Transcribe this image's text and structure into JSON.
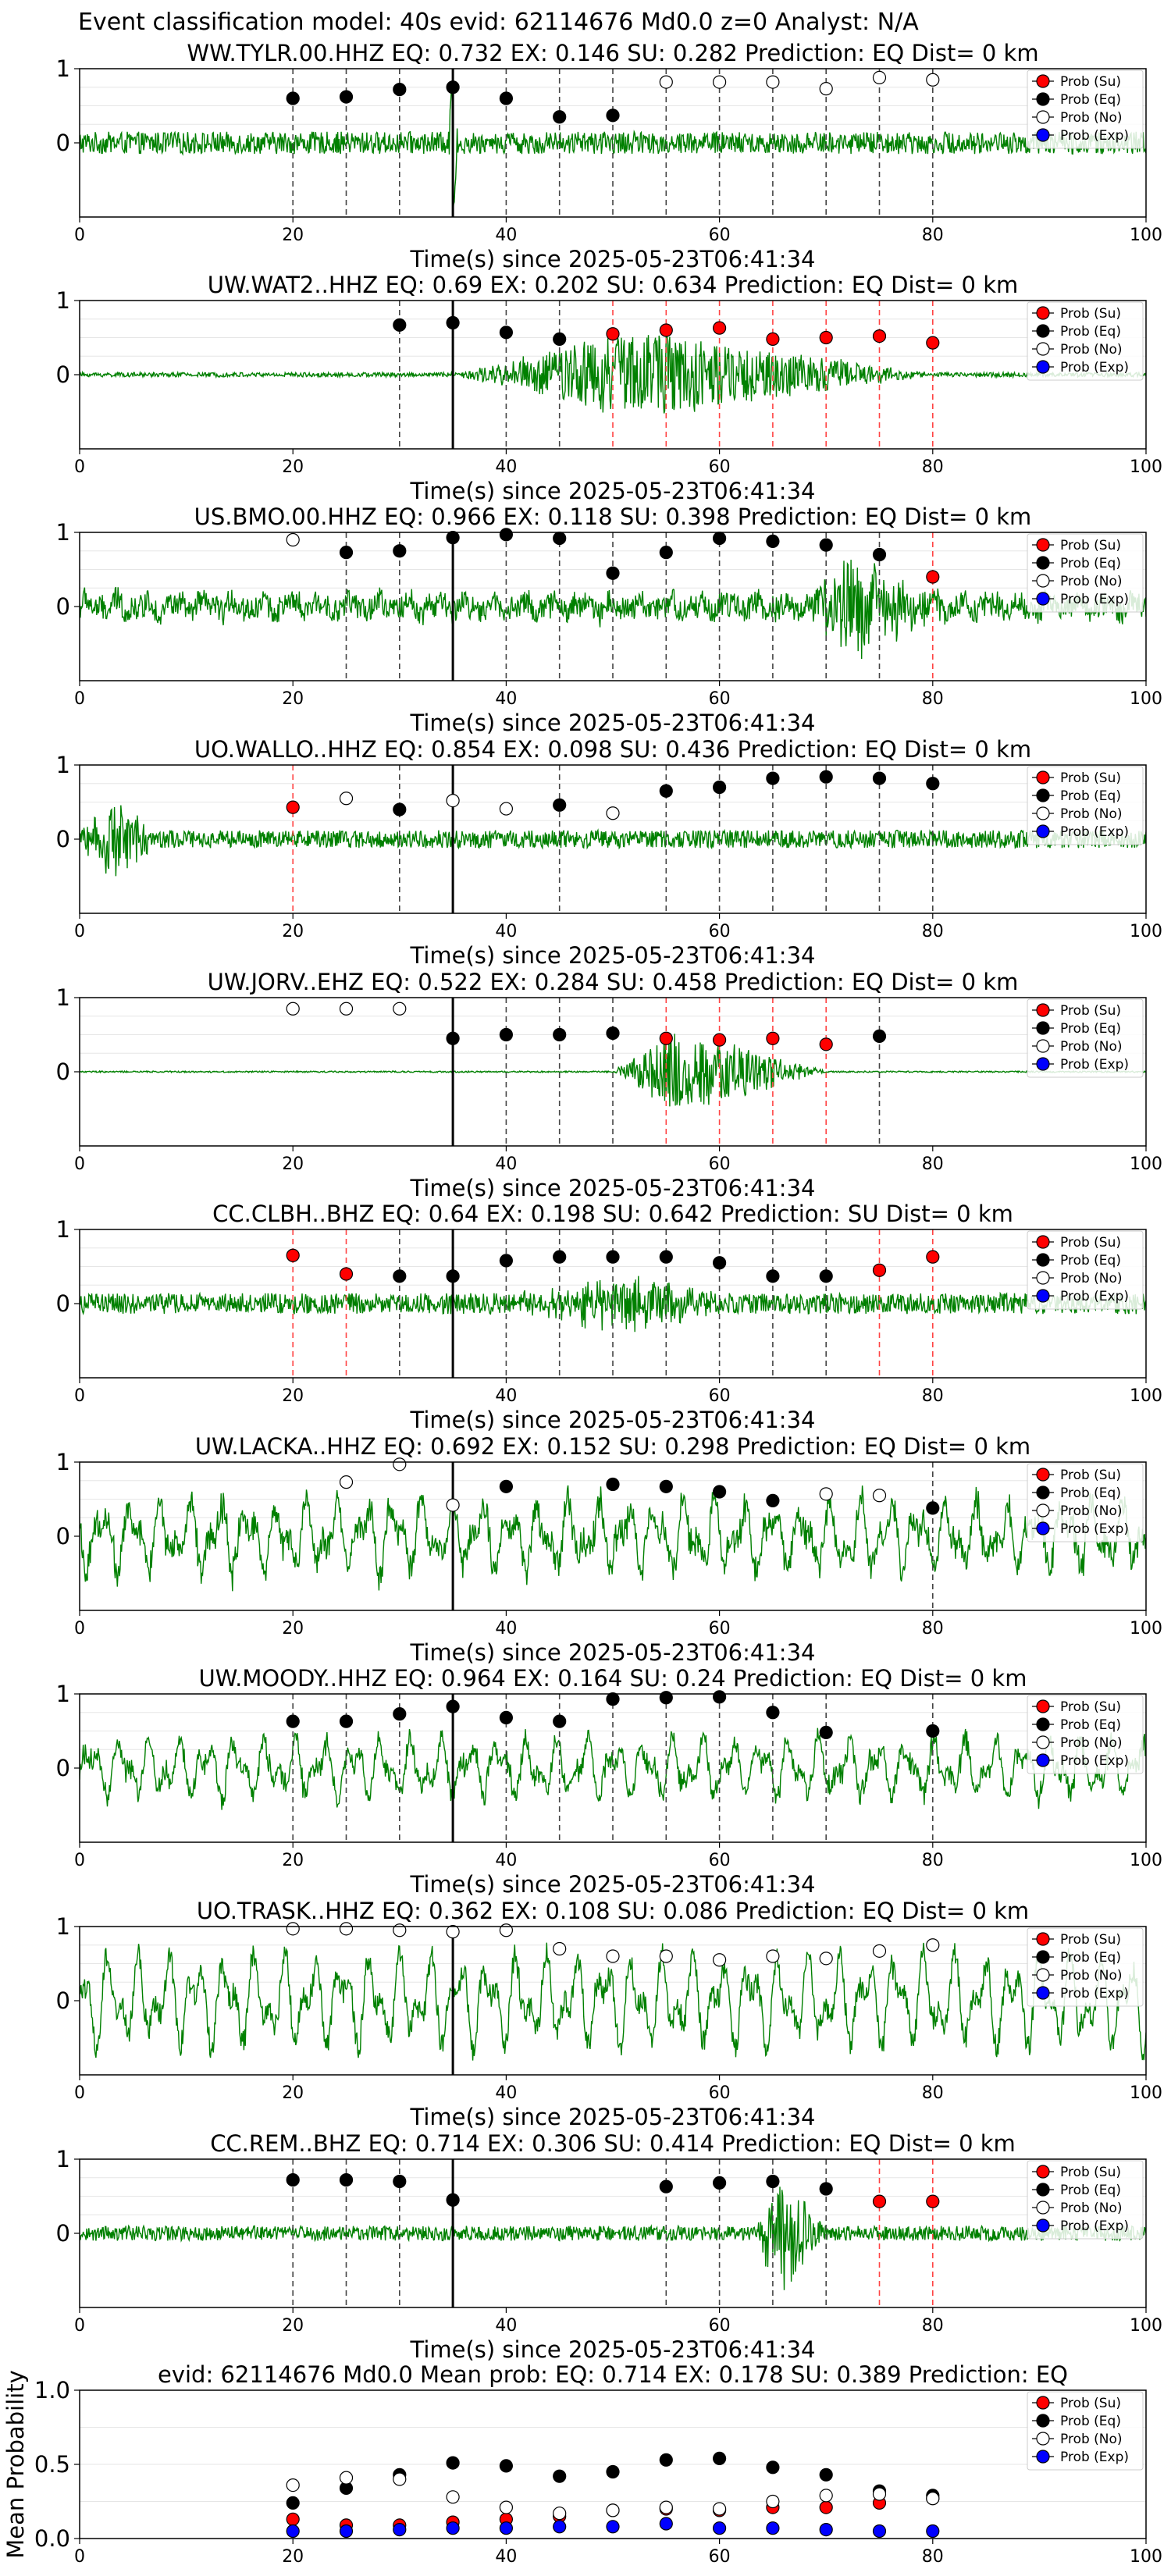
{
  "suptitle": "Event classification model: 40s evid: 62114676 Md0.0 z=0 Analyst: N/A",
  "colors": {
    "waveform": "#008000",
    "su": "#ff0000",
    "eq": "#000000",
    "no": "#ffffff",
    "exp": "#0000ff",
    "marker_black_line": "#444444",
    "marker_red_line": "#ff4444"
  },
  "legend_labels": [
    "Prob (Su)",
    "Prob (Eq)",
    "Prob (No)",
    "Prob (Exp)"
  ],
  "chart_data": [
    {
      "type": "scatter",
      "title": "WW.TYLR.00.HHZ   EQ: 0.732  EX: 0.146  SU: 0.282   Prediction: EQ    Dist= 0 km",
      "xlabel": "Time(s) since 2025-05-23T06:41:34",
      "xlim": [
        0,
        100
      ],
      "ylim": [
        -1,
        1
      ],
      "xticks": [
        0,
        20,
        40,
        60,
        80,
        100
      ],
      "yticks": [
        0,
        1
      ],
      "amplitude": 0.15,
      "spike_at": 35,
      "onset_line": 35,
      "windows": [
        20,
        25,
        30,
        35,
        40,
        45,
        50,
        55,
        60,
        65,
        70,
        75,
        80
      ],
      "points": [
        {
          "x": 20,
          "p": 0.6,
          "cls": "eq"
        },
        {
          "x": 25,
          "p": 0.62,
          "cls": "eq"
        },
        {
          "x": 30,
          "p": 0.72,
          "cls": "eq"
        },
        {
          "x": 35,
          "p": 0.75,
          "cls": "eq"
        },
        {
          "x": 40,
          "p": 0.6,
          "cls": "eq"
        },
        {
          "x": 45,
          "p": 0.35,
          "cls": "eq"
        },
        {
          "x": 50,
          "p": 0.37,
          "cls": "eq"
        },
        {
          "x": 55,
          "p": 0.82,
          "cls": "no"
        },
        {
          "x": 60,
          "p": 0.82,
          "cls": "no"
        },
        {
          "x": 65,
          "p": 0.82,
          "cls": "no"
        },
        {
          "x": 70,
          "p": 0.73,
          "cls": "no"
        },
        {
          "x": 75,
          "p": 0.88,
          "cls": "no"
        },
        {
          "x": 80,
          "p": 0.85,
          "cls": "no"
        }
      ]
    },
    {
      "type": "scatter",
      "title": "UW.WAT2..HHZ   EQ: 0.69  EX: 0.202  SU: 0.634   Prediction: EQ    Dist= 0 km",
      "xlabel": "Time(s) since 2025-05-23T06:41:34",
      "xlim": [
        0,
        100
      ],
      "ylim": [
        -1,
        1
      ],
      "xticks": [
        0,
        20,
        40,
        60,
        80,
        100
      ],
      "yticks": [
        0,
        1
      ],
      "amplitude": 0.03,
      "burst": [
        35,
        80,
        0.6,
        52
      ],
      "onset_line": 35,
      "windows": [
        30,
        35,
        40,
        45,
        50,
        55,
        60,
        65,
        70,
        75,
        80
      ],
      "points": [
        {
          "x": 30,
          "p": 0.67,
          "cls": "eq"
        },
        {
          "x": 35,
          "p": 0.7,
          "cls": "eq"
        },
        {
          "x": 40,
          "p": 0.57,
          "cls": "eq"
        },
        {
          "x": 45,
          "p": 0.48,
          "cls": "eq"
        },
        {
          "x": 50,
          "p": 0.55,
          "cls": "su"
        },
        {
          "x": 55,
          "p": 0.6,
          "cls": "su"
        },
        {
          "x": 60,
          "p": 0.63,
          "cls": "su"
        },
        {
          "x": 65,
          "p": 0.48,
          "cls": "su"
        },
        {
          "x": 70,
          "p": 0.5,
          "cls": "su"
        },
        {
          "x": 75,
          "p": 0.52,
          "cls": "su"
        },
        {
          "x": 80,
          "p": 0.43,
          "cls": "su"
        }
      ]
    },
    {
      "type": "scatter",
      "title": "US.BMO.00.HHZ   EQ: 0.966  EX: 0.118  SU: 0.398   Prediction: EQ    Dist= 0 km",
      "xlabel": "Time(s) since 2025-05-23T06:41:34",
      "xlim": [
        0,
        100
      ],
      "ylim": [
        -1,
        1
      ],
      "xticks": [
        0,
        20,
        40,
        60,
        80,
        100
      ],
      "yticks": [
        0,
        1
      ],
      "amplitude": 0.25,
      "lowfreq": 0.35,
      "burst": [
        68,
        82,
        0.6,
        72
      ],
      "onset_line": 35,
      "windows": [
        25,
        30,
        35,
        40,
        45,
        50,
        55,
        60,
        65,
        70,
        75,
        80
      ],
      "points": [
        {
          "x": 20,
          "p": 0.9,
          "cls": "no"
        },
        {
          "x": 25,
          "p": 0.73,
          "cls": "eq"
        },
        {
          "x": 30,
          "p": 0.75,
          "cls": "eq"
        },
        {
          "x": 35,
          "p": 0.93,
          "cls": "eq"
        },
        {
          "x": 40,
          "p": 0.97,
          "cls": "eq"
        },
        {
          "x": 45,
          "p": 0.92,
          "cls": "eq"
        },
        {
          "x": 50,
          "p": 0.45,
          "cls": "eq"
        },
        {
          "x": 55,
          "p": 0.73,
          "cls": "eq"
        },
        {
          "x": 60,
          "p": 0.92,
          "cls": "eq"
        },
        {
          "x": 65,
          "p": 0.88,
          "cls": "eq"
        },
        {
          "x": 70,
          "p": 0.83,
          "cls": "eq"
        },
        {
          "x": 75,
          "p": 0.7,
          "cls": "eq"
        },
        {
          "x": 80,
          "p": 0.4,
          "cls": "su"
        }
      ]
    },
    {
      "type": "scatter",
      "title": "UO.WALLO..HHZ   EQ: 0.854  EX: 0.098  SU: 0.436   Prediction: EQ    Dist= 0 km",
      "xlabel": "Time(s) since 2025-05-23T06:41:34",
      "xlim": [
        0,
        100
      ],
      "ylim": [
        -1,
        1
      ],
      "xticks": [
        0,
        20,
        40,
        60,
        80,
        100
      ],
      "yticks": [
        0,
        1
      ],
      "amplitude": 0.12,
      "burst": [
        0,
        8,
        0.5,
        3
      ],
      "onset_line": 35,
      "windows": [
        20,
        30,
        45,
        55,
        60,
        65,
        70,
        75,
        80
      ],
      "points": [
        {
          "x": 20,
          "p": 0.43,
          "cls": "su"
        },
        {
          "x": 25,
          "p": 0.55,
          "cls": "no"
        },
        {
          "x": 30,
          "p": 0.4,
          "cls": "eq"
        },
        {
          "x": 35,
          "p": 0.52,
          "cls": "no"
        },
        {
          "x": 40,
          "p": 0.41,
          "cls": "no"
        },
        {
          "x": 45,
          "p": 0.46,
          "cls": "eq"
        },
        {
          "x": 50,
          "p": 0.35,
          "cls": "no"
        },
        {
          "x": 55,
          "p": 0.65,
          "cls": "eq"
        },
        {
          "x": 60,
          "p": 0.7,
          "cls": "eq"
        },
        {
          "x": 65,
          "p": 0.82,
          "cls": "eq"
        },
        {
          "x": 70,
          "p": 0.84,
          "cls": "eq"
        },
        {
          "x": 75,
          "p": 0.82,
          "cls": "eq"
        },
        {
          "x": 80,
          "p": 0.75,
          "cls": "eq"
        }
      ]
    },
    {
      "type": "scatter",
      "title": "UW.JORV..EHZ   EQ: 0.522  EX: 0.284  SU: 0.458   Prediction: EQ    Dist= 0 km",
      "xlabel": "Time(s) since 2025-05-23T06:41:34",
      "xlim": [
        0,
        100
      ],
      "ylim": [
        -1,
        1
      ],
      "xticks": [
        0,
        20,
        40,
        60,
        80,
        100
      ],
      "yticks": [
        0,
        1
      ],
      "amplitude": 0.01,
      "burst": [
        50,
        70,
        0.6,
        56
      ],
      "onset_line": 35,
      "windows": [
        40,
        45,
        50,
        55,
        60,
        65,
        70,
        75
      ],
      "points": [
        {
          "x": 20,
          "p": 0.85,
          "cls": "no"
        },
        {
          "x": 25,
          "p": 0.85,
          "cls": "no"
        },
        {
          "x": 30,
          "p": 0.85,
          "cls": "no"
        },
        {
          "x": 35,
          "p": 0.45,
          "cls": "eq"
        },
        {
          "x": 40,
          "p": 0.5,
          "cls": "eq"
        },
        {
          "x": 45,
          "p": 0.5,
          "cls": "eq"
        },
        {
          "x": 50,
          "p": 0.52,
          "cls": "eq"
        },
        {
          "x": 55,
          "p": 0.45,
          "cls": "su"
        },
        {
          "x": 60,
          "p": 0.43,
          "cls": "su"
        },
        {
          "x": 65,
          "p": 0.45,
          "cls": "su"
        },
        {
          "x": 70,
          "p": 0.37,
          "cls": "su"
        },
        {
          "x": 75,
          "p": 0.48,
          "cls": "eq"
        }
      ]
    },
    {
      "type": "scatter",
      "title": "CC.CLBH..BHZ   EQ: 0.64  EX: 0.198  SU: 0.642   Prediction: SU    Dist= 0 km",
      "xlabel": "Time(s) since 2025-05-23T06:41:34",
      "xlim": [
        0,
        100
      ],
      "ylim": [
        -1,
        1
      ],
      "xticks": [
        0,
        20,
        40,
        60,
        80,
        100
      ],
      "yticks": [
        0,
        1
      ],
      "amplitude": 0.14,
      "burst": [
        40,
        60,
        0.35,
        52
      ],
      "onset_line": 35,
      "windows": [
        20,
        25,
        30,
        35,
        40,
        45,
        50,
        55,
        60,
        65,
        70,
        75,
        80
      ],
      "points": [
        {
          "x": 20,
          "p": 0.65,
          "cls": "su"
        },
        {
          "x": 25,
          "p": 0.4,
          "cls": "su"
        },
        {
          "x": 30,
          "p": 0.37,
          "cls": "eq"
        },
        {
          "x": 35,
          "p": 0.37,
          "cls": "eq"
        },
        {
          "x": 40,
          "p": 0.58,
          "cls": "eq"
        },
        {
          "x": 45,
          "p": 0.63,
          "cls": "eq"
        },
        {
          "x": 50,
          "p": 0.63,
          "cls": "eq"
        },
        {
          "x": 55,
          "p": 0.63,
          "cls": "eq"
        },
        {
          "x": 60,
          "p": 0.55,
          "cls": "eq"
        },
        {
          "x": 65,
          "p": 0.37,
          "cls": "eq"
        },
        {
          "x": 70,
          "p": 0.37,
          "cls": "eq"
        },
        {
          "x": 75,
          "p": 0.45,
          "cls": "su"
        },
        {
          "x": 80,
          "p": 0.63,
          "cls": "su"
        }
      ]
    },
    {
      "type": "scatter",
      "title": "UW.LACKA..HHZ   EQ: 0.692  EX: 0.152  SU: 0.298   Prediction: EQ    Dist= 0 km",
      "xlabel": "Time(s) since 2025-05-23T06:41:34",
      "xlim": [
        0,
        100
      ],
      "ylim": [
        -1,
        1
      ],
      "xticks": [
        0,
        20,
        40,
        60,
        80,
        100
      ],
      "yticks": [
        0,
        1
      ],
      "amplitude": 0.55,
      "lowfreq": 0.75,
      "onset_line": 35,
      "windows": [
        80
      ],
      "points": [
        {
          "x": 25,
          "p": 0.73,
          "cls": "no"
        },
        {
          "x": 30,
          "p": 0.97,
          "cls": "no"
        },
        {
          "x": 35,
          "p": 0.42,
          "cls": "no"
        },
        {
          "x": 40,
          "p": 0.67,
          "cls": "eq"
        },
        {
          "x": 50,
          "p": 0.7,
          "cls": "eq"
        },
        {
          "x": 55,
          "p": 0.67,
          "cls": "eq"
        },
        {
          "x": 60,
          "p": 0.6,
          "cls": "eq"
        },
        {
          "x": 65,
          "p": 0.48,
          "cls": "eq"
        },
        {
          "x": 70,
          "p": 0.57,
          "cls": "no"
        },
        {
          "x": 75,
          "p": 0.55,
          "cls": "no"
        },
        {
          "x": 80,
          "p": 0.38,
          "cls": "eq"
        }
      ]
    },
    {
      "type": "scatter",
      "title": "UW.MOODY..HHZ   EQ: 0.964  EX: 0.164  SU: 0.24   Prediction: EQ    Dist= 0 km",
      "xlabel": "Time(s) since 2025-05-23T06:41:34",
      "xlim": [
        0,
        100
      ],
      "ylim": [
        -1,
        1
      ],
      "xticks": [
        0,
        20,
        40,
        60,
        80,
        100
      ],
      "yticks": [
        0,
        1
      ],
      "amplitude": 0.45,
      "lowfreq": 0.8,
      "onset_line": 35,
      "windows": [
        20,
        25,
        30,
        35,
        40,
        45,
        50,
        55,
        60,
        65,
        70,
        80
      ],
      "points": [
        {
          "x": 20,
          "p": 0.63,
          "cls": "eq"
        },
        {
          "x": 25,
          "p": 0.63,
          "cls": "eq"
        },
        {
          "x": 30,
          "p": 0.73,
          "cls": "eq"
        },
        {
          "x": 35,
          "p": 0.83,
          "cls": "eq"
        },
        {
          "x": 40,
          "p": 0.68,
          "cls": "eq"
        },
        {
          "x": 45,
          "p": 0.63,
          "cls": "eq"
        },
        {
          "x": 50,
          "p": 0.93,
          "cls": "eq"
        },
        {
          "x": 55,
          "p": 0.95,
          "cls": "eq"
        },
        {
          "x": 60,
          "p": 0.96,
          "cls": "eq"
        },
        {
          "x": 65,
          "p": 0.75,
          "cls": "eq"
        },
        {
          "x": 70,
          "p": 0.48,
          "cls": "eq"
        },
        {
          "x": 80,
          "p": 0.5,
          "cls": "eq"
        }
      ]
    },
    {
      "type": "scatter",
      "title": "UO.TRASK..HHZ   EQ: 0.362  EX: 0.108  SU: 0.086   Prediction: EQ    Dist= 0 km",
      "xlabel": "Time(s) since 2025-05-23T06:41:34",
      "xlim": [
        0,
        100
      ],
      "ylim": [
        -1,
        1
      ],
      "xticks": [
        0,
        20,
        40,
        60,
        80,
        100
      ],
      "yticks": [
        0,
        1
      ],
      "amplitude": 0.55,
      "lowfreq": 1.0,
      "onset_line": 35,
      "windows": [],
      "points": [
        {
          "x": 20,
          "p": 0.97,
          "cls": "no"
        },
        {
          "x": 25,
          "p": 0.97,
          "cls": "no"
        },
        {
          "x": 30,
          "p": 0.95,
          "cls": "no"
        },
        {
          "x": 35,
          "p": 0.93,
          "cls": "no"
        },
        {
          "x": 40,
          "p": 0.95,
          "cls": "no"
        },
        {
          "x": 45,
          "p": 0.7,
          "cls": "no"
        },
        {
          "x": 50,
          "p": 0.6,
          "cls": "no"
        },
        {
          "x": 55,
          "p": 0.6,
          "cls": "no"
        },
        {
          "x": 60,
          "p": 0.55,
          "cls": "no"
        },
        {
          "x": 65,
          "p": 0.6,
          "cls": "no"
        },
        {
          "x": 70,
          "p": 0.57,
          "cls": "no"
        },
        {
          "x": 75,
          "p": 0.67,
          "cls": "no"
        },
        {
          "x": 80,
          "p": 0.75,
          "cls": "no"
        }
      ]
    },
    {
      "type": "scatter",
      "title": "CC.REM..BHZ   EQ: 0.714  EX: 0.306  SU: 0.414   Prediction: EQ    Dist= 0 km",
      "xlabel": "Time(s) since 2025-05-23T06:41:34",
      "xlim": [
        0,
        100
      ],
      "ylim": [
        -1,
        1
      ],
      "xticks": [
        0,
        20,
        40,
        60,
        80,
        100
      ],
      "yticks": [
        0,
        1
      ],
      "amplitude": 0.1,
      "burst": [
        63,
        70,
        0.85,
        66
      ],
      "onset_line": 35,
      "windows": [
        20,
        25,
        30,
        55,
        60,
        65,
        70,
        75,
        80
      ],
      "points": [
        {
          "x": 20,
          "p": 0.72,
          "cls": "eq"
        },
        {
          "x": 25,
          "p": 0.72,
          "cls": "eq"
        },
        {
          "x": 30,
          "p": 0.7,
          "cls": "eq"
        },
        {
          "x": 35,
          "p": 0.45,
          "cls": "eq"
        },
        {
          "x": 55,
          "p": 0.63,
          "cls": "eq"
        },
        {
          "x": 60,
          "p": 0.68,
          "cls": "eq"
        },
        {
          "x": 65,
          "p": 0.7,
          "cls": "eq"
        },
        {
          "x": 70,
          "p": 0.6,
          "cls": "eq"
        },
        {
          "x": 75,
          "p": 0.43,
          "cls": "su"
        },
        {
          "x": 80,
          "p": 0.43,
          "cls": "su"
        }
      ]
    },
    {
      "type": "scatter",
      "title": "evid: 62114676  Md0.0   Mean prob:   EQ: 0.714  EX: 0.178  SU: 0.389   Prediction: EQ",
      "xlabel": "",
      "ylabel": "Mean Probability",
      "xlim": [
        0,
        100
      ],
      "ylim": [
        0,
        1
      ],
      "xticks": [
        0,
        20,
        40,
        60,
        80,
        100
      ],
      "yticks": [
        0.0,
        0.5,
        1.0
      ],
      "x": [
        20,
        25,
        30,
        35,
        40,
        45,
        50,
        55,
        60,
        65,
        70,
        75,
        80
      ],
      "series": [
        {
          "name": "Prob (Su)",
          "cls": "su",
          "values": [
            0.13,
            0.09,
            0.09,
            0.11,
            0.13,
            0.15,
            0.19,
            0.2,
            0.19,
            0.21,
            0.21,
            0.24,
            0.27
          ]
        },
        {
          "name": "Prob (Eq)",
          "cls": "eq",
          "values": [
            0.24,
            0.34,
            0.43,
            0.51,
            0.49,
            0.42,
            0.45,
            0.53,
            0.54,
            0.48,
            0.43,
            0.32,
            0.29
          ]
        },
        {
          "name": "Prob (No)",
          "cls": "no",
          "values": [
            0.36,
            0.41,
            0.4,
            0.28,
            0.21,
            0.17,
            0.19,
            0.21,
            0.2,
            0.25,
            0.29,
            0.3,
            0.27
          ]
        },
        {
          "name": "Prob (Exp)",
          "cls": "exp",
          "values": [
            0.05,
            0.05,
            0.06,
            0.07,
            0.07,
            0.08,
            0.08,
            0.1,
            0.07,
            0.07,
            0.06,
            0.05,
            0.05
          ]
        }
      ]
    }
  ]
}
